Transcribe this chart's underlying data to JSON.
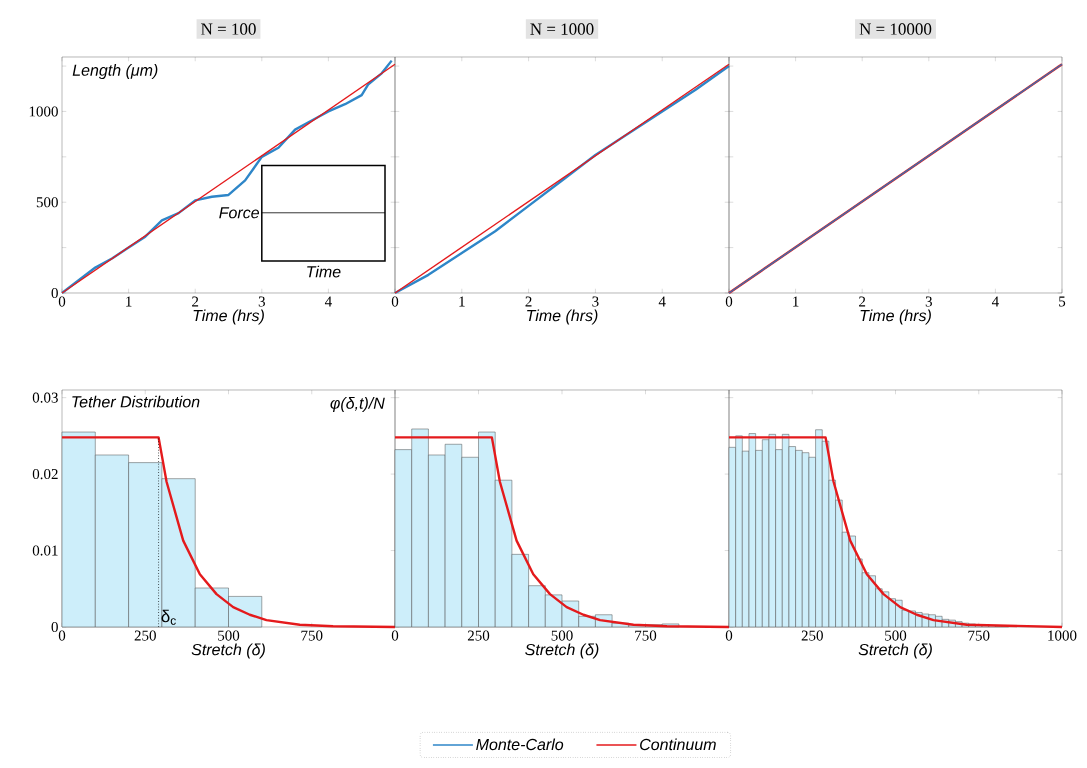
{
  "chart_data": [
    {
      "type": "line",
      "title": "N = 100",
      "xlabel": "Time (hrs)",
      "ylabel": "Length (μm)",
      "annotations": [
        "Force",
        "Time"
      ],
      "xlim": [
        0,
        5
      ],
      "ylim": [
        0,
        1300
      ],
      "xticks": [
        0,
        1,
        2,
        3,
        4
      ],
      "yticks": [
        0,
        {
          "value": 250,
          "label": null
        },
        500,
        {
          "value": 750,
          "label": null
        },
        1000,
        {
          "value": 1250,
          "label": null
        }
      ],
      "series": [
        {
          "color": "#2e86c8",
          "x": [
            0,
            0.25,
            0.5,
            0.75,
            1,
            1.25,
            1.5,
            1.75,
            2,
            2.25,
            2.5,
            2.75,
            3,
            3.25,
            3.5,
            3.75,
            4,
            4.25,
            4.5,
            4.6,
            4.8,
            4.95
          ],
          "values": [
            0,
            70,
            140,
            190,
            250,
            310,
            400,
            440,
            510,
            530,
            540,
            620,
            750,
            800,
            900,
            950,
            1000,
            1040,
            1090,
            1150,
            1210,
            1280
          ]
        },
        {
          "color": "#e41a1c",
          "x": [
            0,
            5
          ],
          "values": [
            0,
            1260
          ]
        }
      ]
    },
    {
      "type": "line",
      "title": "N = 1000",
      "xlabel": "Time (hrs)",
      "legend": "bottom",
      "tick_labels": "x",
      "xlim": [
        0,
        5
      ],
      "ylim": [
        0,
        1300
      ],
      "xticks": [
        0,
        1,
        2,
        3,
        4
      ],
      "yticks": [
        0,
        250,
        500,
        750,
        1000,
        1250
      ],
      "series": [
        {
          "name": "Monte-Carlo",
          "color": "#2e86c8",
          "x": [
            0,
            0.5,
            1,
            1.5,
            2,
            2.5,
            3,
            3.5,
            4,
            4.5,
            5
          ],
          "values": [
            0,
            100,
            220,
            340,
            480,
            620,
            760,
            880,
            1000,
            1120,
            1250
          ]
        },
        {
          "name": "Continuum",
          "color": "#e41a1c",
          "x": [
            0,
            5
          ],
          "values": [
            0,
            1260
          ]
        }
      ]
    },
    {
      "type": "line",
      "title": "N = 10000",
      "xlabel": "Time (hrs)",
      "tick_labels": "x",
      "xlim": [
        0,
        5
      ],
      "ylim": [
        0,
        1300
      ],
      "xticks": [
        0,
        1,
        2,
        3,
        4,
        5
      ],
      "yticks": [
        0,
        250,
        500,
        750,
        1000,
        1250
      ],
      "series": [
        {
          "color": "#e41a1c",
          "x": [
            0,
            5
          ],
          "values": [
            0,
            1260
          ]
        },
        {
          "color": "#3a6fb0",
          "x": [
            0,
            5
          ],
          "values": [
            0,
            1260
          ]
        }
      ]
    },
    {
      "type": "histogram",
      "xlabel": "Stretch (δ)",
      "ylabel": "φ(δ,t)/N",
      "annotations": [
        "Tether Distribution"
      ],
      "xlim": [
        0,
        1000
      ],
      "ylim": [
        0,
        0.031
      ],
      "xticks": [
        0,
        250,
        500,
        750
      ],
      "yticks": [
        0,
        0.01,
        0.02,
        0.03
      ],
      "ref_lines": [
        {
          "axis": "x",
          "value": 290,
          "label": "δ$_{c}$",
          "line_style": "dotted"
        }
      ],
      "bins": [
        0,
        100,
        200,
        300,
        400,
        500,
        600
      ],
      "values": [
        0.0255,
        0.0225,
        0.0215,
        0.0194,
        0.0051,
        0.004
      ],
      "color": "#cdeefa",
      "series": [
        {
          "type": "line",
          "color": "#e41a1c",
          "x": [
            0,
            290,
            314,
            340,
            364,
            414,
            464,
            514,
            564,
            614,
            714,
            814,
            1000
          ],
          "values": [
            0.0248,
            0.0248,
            0.019,
            0.015,
            0.0113,
            0.0069,
            0.0043,
            0.0026,
            0.0016,
            0.0009,
            0.0003,
            0.0001,
            0
          ]
        }
      ]
    },
    {
      "type": "histogram",
      "xlabel": "Stretch (δ)",
      "tick_labels": "x",
      "xlim": [
        0,
        1000
      ],
      "ylim": [
        0,
        0.031
      ],
      "xticks": [
        0,
        250,
        500,
        750
      ],
      "yticks": [
        0,
        0.01,
        0.02,
        0.03
      ],
      "bins": [
        0,
        50,
        100,
        150,
        200,
        250,
        300,
        350,
        400,
        450,
        500,
        550,
        600,
        650,
        700,
        750,
        800,
        850
      ],
      "values": [
        0.0232,
        0.0259,
        0.0225,
        0.0239,
        0.0222,
        0.0255,
        0.0192,
        0.0095,
        0.0054,
        0.0042,
        0.0034,
        0.0014,
        0.0016,
        0.0005,
        0.0003,
        0.0003,
        0.0004
      ],
      "color": "#cdeefa",
      "series": [
        {
          "type": "line",
          "color": "#e41a1c",
          "x": [
            0,
            290,
            314,
            340,
            364,
            414,
            464,
            514,
            564,
            614,
            714,
            814,
            1000
          ],
          "values": [
            0.0248,
            0.0248,
            0.019,
            0.015,
            0.0113,
            0.0069,
            0.0043,
            0.0026,
            0.0016,
            0.0009,
            0.0003,
            0.0001,
            0
          ]
        }
      ]
    },
    {
      "type": "histogram",
      "xlabel": "Stretch (δ)",
      "tick_labels": "x",
      "xlim": [
        0,
        1000
      ],
      "ylim": [
        0,
        0.031
      ],
      "xticks": [
        0,
        250,
        500,
        750,
        1000
      ],
      "yticks": [
        0,
        0.01,
        0.02,
        0.03
      ],
      "bins": [
        0,
        20,
        40,
        60,
        80,
        100,
        120,
        140,
        160,
        180,
        200,
        220,
        240,
        260,
        280,
        300,
        320,
        340,
        360,
        380,
        400,
        420,
        440,
        460,
        480,
        500,
        520,
        540,
        560,
        580,
        600,
        620,
        640,
        660,
        680,
        700,
        720,
        740,
        760,
        780,
        800,
        820,
        840
      ],
      "values": [
        0.0235,
        0.025,
        0.023,
        0.0253,
        0.0231,
        0.0245,
        0.0252,
        0.0232,
        0.0252,
        0.0236,
        0.0231,
        0.0228,
        0.0222,
        0.0258,
        0.0243,
        0.0192,
        0.0166,
        0.0124,
        0.0119,
        0.0089,
        0.0071,
        0.0067,
        0.005,
        0.0046,
        0.0037,
        0.0035,
        0.0022,
        0.0021,
        0.0019,
        0.0017,
        0.0016,
        0.0014,
        0.001,
        0.0009,
        0.0007,
        0.0005,
        0.0004,
        0.0003,
        0.0002,
        0.0002,
        0.0001,
        0.0001
      ],
      "color": "#cdeefa",
      "series": [
        {
          "type": "line",
          "color": "#e41a1c",
          "x": [
            0,
            290,
            314,
            340,
            364,
            414,
            464,
            514,
            564,
            614,
            714,
            1000
          ],
          "values": [
            0.0248,
            0.0248,
            0.019,
            0.015,
            0.0113,
            0.0069,
            0.0043,
            0.0026,
            0.0016,
            0.0009,
            0.0003,
            0
          ]
        }
      ]
    }
  ]
}
